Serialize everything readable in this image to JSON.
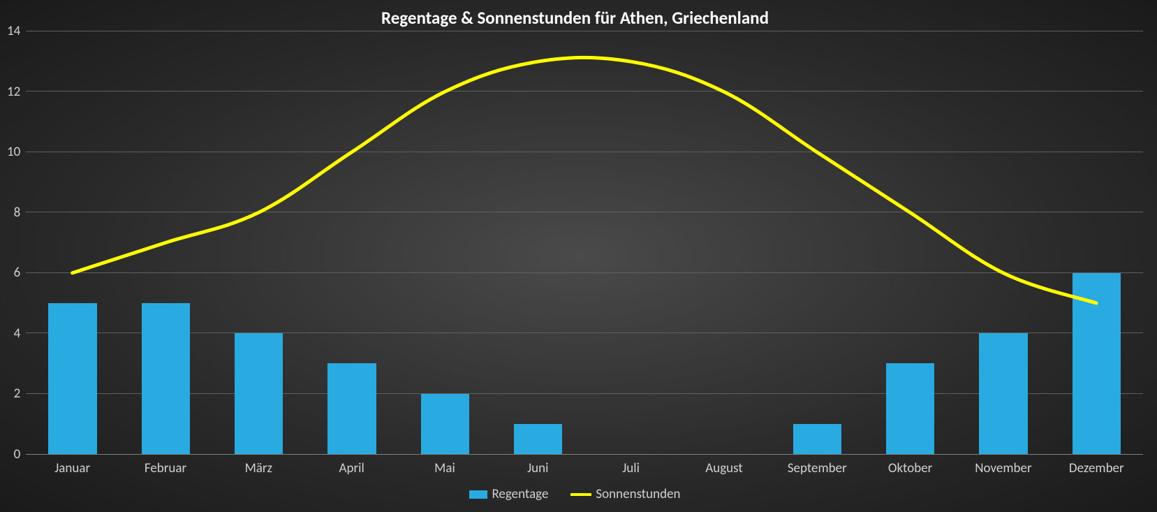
{
  "chart": {
    "type": "bar+line",
    "title": "Regentage & Sonnenstunden für Athen, Griechenland",
    "title_fontsize": 25,
    "title_color": "#ffffff",
    "title_weight": "bold",
    "background": "radial-gradient(#4a4a4a,#1a1a1a)",
    "plot_background": "transparent",
    "grid_color": "#606060",
    "axis_line_color": "#808080",
    "text_color": "#d0d0d0",
    "font_family": "Calibri, Arial, sans-serif",
    "categories": [
      "Januar",
      "Februar",
      "März",
      "April",
      "Mai",
      "Juni",
      "Juli",
      "August",
      "September",
      "Oktober",
      "November",
      "Dezember"
    ],
    "category_fontsize": 19,
    "y": {
      "min": 0,
      "max": 14,
      "tick_step": 2,
      "ticks": [
        0,
        2,
        4,
        6,
        8,
        10,
        12,
        14
      ],
      "tick_fontsize": 19
    },
    "series": {
      "bars": {
        "name": "Regentage",
        "values": [
          5,
          5,
          4,
          3,
          2,
          1,
          0,
          0,
          1,
          3,
          4,
          6
        ],
        "color": "#29abe2",
        "bar_width_fraction": 0.52
      },
      "line": {
        "name": "Sonnenstunden",
        "values": [
          6,
          7,
          8,
          10,
          12,
          13,
          13,
          12,
          10,
          8,
          6,
          5
        ],
        "color": "#ffff00",
        "line_width": 5,
        "smooth": true
      }
    },
    "legend": {
      "position": "bottom-center",
      "fontsize": 19,
      "items": [
        {
          "label": "Regentage",
          "type": "bar",
          "color": "#29abe2"
        },
        {
          "label": "Sonnenstunden",
          "type": "line",
          "color": "#ffff00"
        }
      ]
    }
  }
}
